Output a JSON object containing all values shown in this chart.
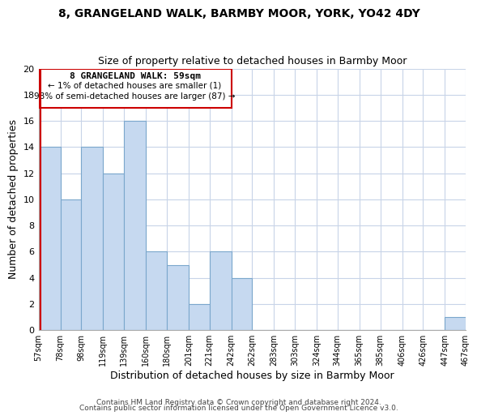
{
  "title": "8, GRANGELAND WALK, BARMBY MOOR, YORK, YO42 4DY",
  "subtitle": "Size of property relative to detached houses in Barmby Moor",
  "xlabel": "Distribution of detached houses by size in Barmby Moor",
  "ylabel": "Number of detached properties",
  "bar_edges": [
    57,
    78,
    98,
    119,
    139,
    160,
    180,
    201,
    221,
    242,
    262,
    283,
    303,
    324,
    344,
    365,
    385,
    406,
    426,
    447,
    467
  ],
  "bar_heights": [
    14,
    10,
    14,
    12,
    16,
    6,
    5,
    2,
    6,
    4,
    0,
    0,
    0,
    0,
    0,
    0,
    0,
    0,
    0,
    1
  ],
  "bar_color": "#c6d9f0",
  "bar_edgecolor": "#7ba7cc",
  "ylim": [
    0,
    20
  ],
  "yticks": [
    0,
    2,
    4,
    6,
    8,
    10,
    12,
    14,
    16,
    18,
    20
  ],
  "xtick_labels": [
    "57sqm",
    "78sqm",
    "98sqm",
    "119sqm",
    "139sqm",
    "160sqm",
    "180sqm",
    "201sqm",
    "221sqm",
    "242sqm",
    "262sqm",
    "283sqm",
    "303sqm",
    "324sqm",
    "344sqm",
    "365sqm",
    "385sqm",
    "406sqm",
    "426sqm",
    "447sqm",
    "467sqm"
  ],
  "annotation_title": "8 GRANGELAND WALK: 59sqm",
  "annotation_line1": "← 1% of detached houses are smaller (1)",
  "annotation_line2": "98% of semi-detached houses are larger (87) →",
  "property_line_x": 59,
  "footer_line1": "Contains HM Land Registry data © Crown copyright and database right 2024.",
  "footer_line2": "Contains public sector information licensed under the Open Government Licence v3.0.",
  "background_color": "#ffffff",
  "grid_color": "#c8d4e8"
}
